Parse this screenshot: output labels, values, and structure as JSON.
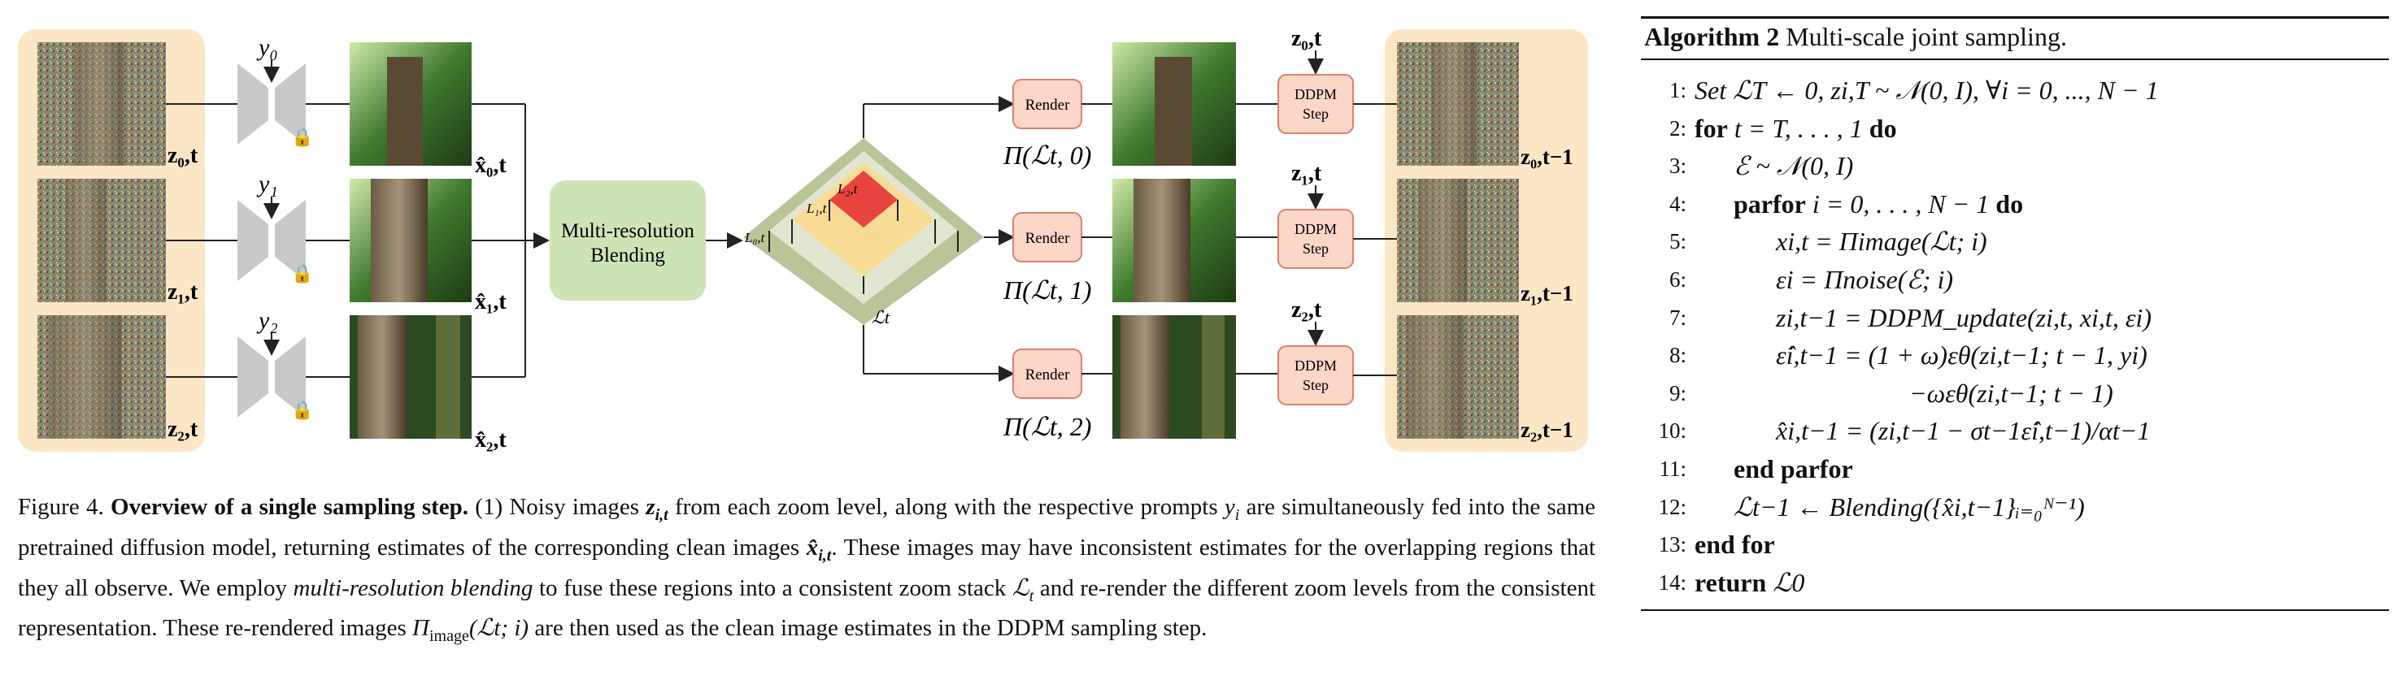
{
  "figure": {
    "left_inputs": [
      {
        "prompt": "y₀",
        "noisy_label": "z₀,t",
        "estimate_label": "x̂₀,t"
      },
      {
        "prompt": "y₁",
        "noisy_label": "z₁,t",
        "estimate_label": "x̂₁,t"
      },
      {
        "prompt": "y₂",
        "noisy_label": "z₂,t",
        "estimate_label": "x̂₂,t"
      }
    ],
    "blend_box": {
      "line1": "Multi-resolution",
      "line2": "Blending"
    },
    "zoom_stack": {
      "L0": "L₀,t",
      "L1": "L₁,t",
      "L2": "L₂,t",
      "Lt": "ℒt"
    },
    "render_label": "Render",
    "render_outputs": [
      "Π(ℒt, 0)",
      "Π(ℒt, 1)",
      "Π(ℒt, 2)"
    ],
    "ddpm": {
      "line1": "DDPM",
      "line2": "Step"
    },
    "noise_inputs": [
      "z₀,t",
      "z₁,t",
      "z₂,t"
    ],
    "right_outputs": [
      "z₀,t−1",
      "z₁,t−1",
      "z₂,t−1"
    ],
    "colors": {
      "panel_tan": "#fbe6c6",
      "blend_green": "#cfe4b6",
      "render_pink": "#fcd6c6",
      "render_border": "#d9836f",
      "stack_red": "#e8433f",
      "stack_yellow": "#f8dc95",
      "stack_olive": "#b9c498",
      "unet_gray": "#c9c9c9"
    }
  },
  "caption": {
    "label": "Figure 4.",
    "bold": "Overview of a single sampling step.",
    "s1": "(1) Noisy images",
    "z_it": "z",
    "z_sub": "i,t",
    "s2": "from each zoom level, along with the respective prompts",
    "y_i": "y",
    "y_sub": "i",
    "s3": "are simultaneously fed into the same pretrained diffusion model, returning estimates of the corresponding clean images",
    "x_hat": "x̂",
    "x_sub": "i,t",
    "s4": ". These images may have inconsistent estimates for the overlapping regions that they all observe. We employ",
    "italic": "multi-resolution blending",
    "s5": "to fuse these regions into a consistent zoom stack",
    "Lt": "ℒ",
    "Lt_sub": "t",
    "s6": "and re-render the different zoom levels from the consistent representation. These re-rendered images",
    "Pi": "Π",
    "Pi_sub": "image",
    "Pi_arg": "(ℒt; i)",
    "s7": "are then used as the clean image estimates in the DDPM sampling step."
  },
  "algorithm": {
    "label": "Algorithm 2",
    "title": "Multi-scale joint sampling.",
    "lines": [
      {
        "n": "1:",
        "text": "Set ℒT ← 0, zi,T ~ 𝒩(0, I), ∀i = 0, ..., N − 1"
      },
      {
        "n": "2:",
        "kw": "for",
        "text": "t = T, . . . , 1",
        "kw2": "do"
      },
      {
        "n": "3:",
        "text": "ℰ ~ 𝒩(0, I)"
      },
      {
        "n": "4:",
        "kw": "parfor",
        "text": "i = 0, . . . , N − 1",
        "kw2": "do"
      },
      {
        "n": "5:",
        "text": "xi,t = Πimage(ℒt; i)"
      },
      {
        "n": "6:",
        "text": "εi = Πnoise(ℰ; i)"
      },
      {
        "n": "7:",
        "text": "zi,t−1 = DDPM_update(zi,t, xi,t, εi)"
      },
      {
        "n": "8:",
        "text": "ε̂i,t−1 = (1 + ω)εθ(zi,t−1; t − 1, yi)"
      },
      {
        "n": "9:",
        "text": "−ωεθ(zi,t−1; t − 1)"
      },
      {
        "n": "10:",
        "text": "x̂i,t−1 = (zi,t−1 − σt−1ε̂i,t−1)/αt−1"
      },
      {
        "n": "11:",
        "kw": "end parfor"
      },
      {
        "n": "12:",
        "text": "ℒt−1 ← Blending({x̂i,t−1}ᵢ₌₀ᴺ⁻¹)"
      },
      {
        "n": "13:",
        "kw": "end for"
      },
      {
        "n": "14:",
        "kw": "return",
        "text": "ℒ0"
      }
    ]
  }
}
